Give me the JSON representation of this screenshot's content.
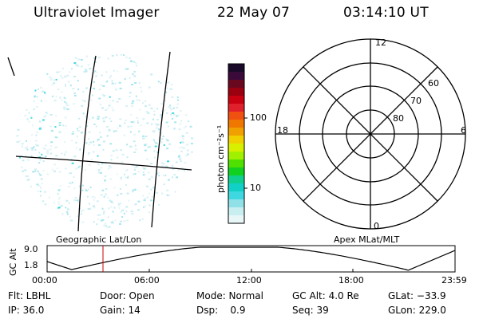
{
  "header": {
    "instrument": "Ultraviolet Imager",
    "date": "22 May 07",
    "time": "03:14:10 UT"
  },
  "colorbar": {
    "label": "photon cm⁻²s⁻¹",
    "ticks": [
      "100",
      "10"
    ],
    "colors": [
      "#1a0a2a",
      "#3a0a3a",
      "#6a0820",
      "#9a0010",
      "#c80010",
      "#e0202a",
      "#f05010",
      "#f07800",
      "#f0a000",
      "#f0d000",
      "#d8f000",
      "#a0f000",
      "#50e000",
      "#10d020",
      "#10d090",
      "#10d0c8",
      "#40d8e0",
      "#90e0e8",
      "#c8eef0",
      "#e8f6f8"
    ]
  },
  "left_panel": {
    "label": "Geographic Lat/Lon"
  },
  "polar_plot": {
    "label": "Apex MLat/MLT",
    "mlt_labels": {
      "top": "12",
      "bottom": "0",
      "left": "18",
      "right": "6"
    },
    "lat_labels": [
      "60",
      "70",
      "80"
    ]
  },
  "altitude_strip": {
    "ylabel": "GC Alt",
    "yticks": [
      "9.0",
      "1.8"
    ],
    "xticks": [
      "00:00",
      "06:00",
      "12:00",
      "18:00",
      "23:59"
    ],
    "marker_color": "#cc0000"
  },
  "footer": {
    "row1": [
      "Flt: LBHL",
      "Door: Open",
      "Mode: Normal",
      "GC Alt: 4.0 Re",
      "GLat: −33.9"
    ],
    "row2": [
      "IP: 36.0",
      "Gain: 14",
      "Dsp:    0.9",
      "Seq: 39",
      "GLon: 229.0"
    ]
  }
}
